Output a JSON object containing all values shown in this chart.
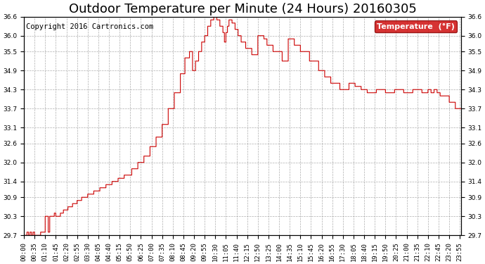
{
  "title": "Outdoor Temperature per Minute (24 Hours) 20160305",
  "copyright_text": "Copyright 2016 Cartronics.com",
  "legend_label": "Temperature  (°F)",
  "line_color": "#cc0000",
  "bg_color": "#ffffff",
  "plot_bg_color": "#ffffff",
  "grid_color": "#999999",
  "legend_bg": "#cc0000",
  "legend_text_color": "#ffffff",
  "ylim_min": 29.7,
  "ylim_max": 36.6,
  "yticks": [
    29.7,
    30.3,
    30.9,
    31.4,
    32.0,
    32.6,
    33.1,
    33.7,
    34.3,
    34.9,
    35.5,
    36.0,
    36.6
  ],
  "title_fontsize": 13,
  "tick_fontsize": 6.5,
  "copyright_fontsize": 7.5,
  "tick_interval": 35
}
